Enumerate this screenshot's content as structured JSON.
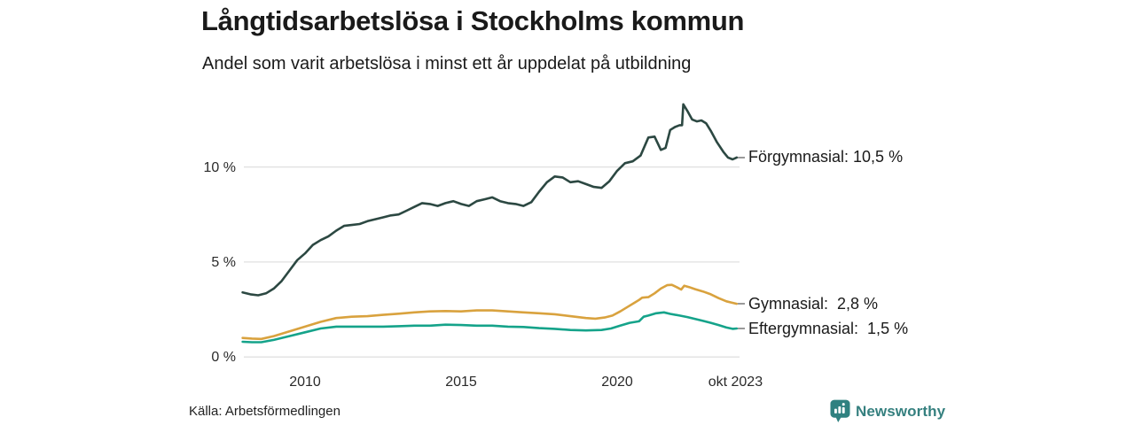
{
  "header": {
    "title": "Långtidsarbetslösa i Stockholms kommun",
    "subtitle": "Andel som varit arbetslösa i minst ett år uppdelat på utbildning"
  },
  "footer": {
    "source": "Källa: Arbetsförmedlingen",
    "brand": "Newsworthy"
  },
  "colors": {
    "grid": "#e0e0e0",
    "tick_text": "#2a2a2a",
    "label_dash": "#999999",
    "brand_teal": "#2f8180"
  },
  "chart_data": {
    "type": "line",
    "title": "Långtidsarbetslösa i Stockholms kommun",
    "subtitle": "Andel som varit arbetslösa i minst ett år uppdelat på utbildning",
    "unit": "%",
    "grid": "horizontal",
    "legend_position": "end-of-line-labels-right",
    "xlim": [
      2008.0,
      2023.83
    ],
    "ylim": [
      0,
      13.8
    ],
    "yticks": [
      {
        "value": 0,
        "label": "0 %"
      },
      {
        "value": 5,
        "label": "5 %"
      },
      {
        "value": 10,
        "label": "10 %"
      }
    ],
    "xticks": [
      {
        "value": 2010,
        "label": "2010"
      },
      {
        "value": 2015,
        "label": "2015"
      },
      {
        "value": 2020,
        "label": "2020"
      },
      {
        "value": 2023.79,
        "label": "okt 2023"
      }
    ],
    "series": [
      {
        "name": "Förgymnasial",
        "end_label": "Förgymnasial: 10,5 %",
        "end_value": 10.5,
        "color": "#2c4842",
        "points": [
          [
            2008.0,
            3.4
          ],
          [
            2008.25,
            3.3
          ],
          [
            2008.5,
            3.25
          ],
          [
            2008.75,
            3.35
          ],
          [
            2009.0,
            3.6
          ],
          [
            2009.25,
            4.0
          ],
          [
            2009.5,
            4.55
          ],
          [
            2009.75,
            5.1
          ],
          [
            2010.0,
            5.45
          ],
          [
            2010.25,
            5.9
          ],
          [
            2010.5,
            6.15
          ],
          [
            2010.75,
            6.35
          ],
          [
            2011.0,
            6.65
          ],
          [
            2011.25,
            6.9
          ],
          [
            2011.5,
            6.95
          ],
          [
            2011.75,
            7.0
          ],
          [
            2012.0,
            7.15
          ],
          [
            2012.25,
            7.25
          ],
          [
            2012.5,
            7.35
          ],
          [
            2012.75,
            7.45
          ],
          [
            2013.0,
            7.5
          ],
          [
            2013.25,
            7.7
          ],
          [
            2013.5,
            7.9
          ],
          [
            2013.75,
            8.1
          ],
          [
            2014.0,
            8.05
          ],
          [
            2014.25,
            7.95
          ],
          [
            2014.5,
            8.1
          ],
          [
            2014.75,
            8.2
          ],
          [
            2015.0,
            8.05
          ],
          [
            2015.25,
            7.95
          ],
          [
            2015.5,
            8.2
          ],
          [
            2015.75,
            8.3
          ],
          [
            2016.0,
            8.4
          ],
          [
            2016.25,
            8.2
          ],
          [
            2016.5,
            8.1
          ],
          [
            2016.75,
            8.05
          ],
          [
            2017.0,
            7.95
          ],
          [
            2017.25,
            8.15
          ],
          [
            2017.5,
            8.7
          ],
          [
            2017.75,
            9.2
          ],
          [
            2018.0,
            9.5
          ],
          [
            2018.25,
            9.45
          ],
          [
            2018.5,
            9.2
          ],
          [
            2018.75,
            9.25
          ],
          [
            2019.0,
            9.1
          ],
          [
            2019.25,
            8.95
          ],
          [
            2019.5,
            8.9
          ],
          [
            2019.75,
            9.25
          ],
          [
            2020.0,
            9.8
          ],
          [
            2020.25,
            10.2
          ],
          [
            2020.5,
            10.3
          ],
          [
            2020.75,
            10.6
          ],
          [
            2021.0,
            11.55
          ],
          [
            2021.2,
            11.6
          ],
          [
            2021.4,
            10.9
          ],
          [
            2021.55,
            11.0
          ],
          [
            2021.7,
            11.95
          ],
          [
            2021.85,
            12.1
          ],
          [
            2022.0,
            12.2
          ],
          [
            2022.08,
            12.2
          ],
          [
            2022.12,
            13.3
          ],
          [
            2022.25,
            12.95
          ],
          [
            2022.4,
            12.5
          ],
          [
            2022.55,
            12.4
          ],
          [
            2022.7,
            12.45
          ],
          [
            2022.85,
            12.3
          ],
          [
            2023.0,
            11.9
          ],
          [
            2023.2,
            11.3
          ],
          [
            2023.4,
            10.8
          ],
          [
            2023.55,
            10.5
          ],
          [
            2023.7,
            10.4
          ],
          [
            2023.83,
            10.5
          ]
        ]
      },
      {
        "name": "Gymnasial",
        "end_label": "Gymnasial:  2,8 %",
        "end_value": 2.8,
        "color": "#d9a23e",
        "points": [
          [
            2008.0,
            1.0
          ],
          [
            2008.3,
            0.97
          ],
          [
            2008.6,
            0.95
          ],
          [
            2009.0,
            1.1
          ],
          [
            2009.5,
            1.35
          ],
          [
            2010.0,
            1.6
          ],
          [
            2010.5,
            1.85
          ],
          [
            2011.0,
            2.05
          ],
          [
            2011.5,
            2.12
          ],
          [
            2012.0,
            2.15
          ],
          [
            2012.5,
            2.22
          ],
          [
            2013.0,
            2.28
          ],
          [
            2013.5,
            2.35
          ],
          [
            2014.0,
            2.4
          ],
          [
            2014.5,
            2.42
          ],
          [
            2015.0,
            2.4
          ],
          [
            2015.5,
            2.45
          ],
          [
            2016.0,
            2.45
          ],
          [
            2016.5,
            2.4
          ],
          [
            2017.0,
            2.35
          ],
          [
            2017.5,
            2.3
          ],
          [
            2018.0,
            2.25
          ],
          [
            2018.5,
            2.15
          ],
          [
            2019.0,
            2.05
          ],
          [
            2019.3,
            2.02
          ],
          [
            2019.6,
            2.08
          ],
          [
            2019.85,
            2.18
          ],
          [
            2020.1,
            2.4
          ],
          [
            2020.35,
            2.65
          ],
          [
            2020.55,
            2.85
          ],
          [
            2020.7,
            3.0
          ],
          [
            2020.8,
            3.12
          ],
          [
            2021.0,
            3.15
          ],
          [
            2021.2,
            3.35
          ],
          [
            2021.4,
            3.6
          ],
          [
            2021.6,
            3.78
          ],
          [
            2021.75,
            3.8
          ],
          [
            2021.9,
            3.68
          ],
          [
            2022.05,
            3.55
          ],
          [
            2022.15,
            3.75
          ],
          [
            2022.3,
            3.68
          ],
          [
            2022.5,
            3.57
          ],
          [
            2022.75,
            3.45
          ],
          [
            2023.0,
            3.3
          ],
          [
            2023.25,
            3.1
          ],
          [
            2023.5,
            2.93
          ],
          [
            2023.65,
            2.87
          ],
          [
            2023.83,
            2.8
          ]
        ]
      },
      {
        "name": "Eftergymnasial",
        "end_label": "Eftergymnasial:  1,5 %",
        "end_value": 1.5,
        "color": "#15a38a",
        "points": [
          [
            2008.0,
            0.8
          ],
          [
            2008.3,
            0.78
          ],
          [
            2008.6,
            0.78
          ],
          [
            2009.0,
            0.9
          ],
          [
            2009.5,
            1.1
          ],
          [
            2010.0,
            1.3
          ],
          [
            2010.5,
            1.5
          ],
          [
            2011.0,
            1.6
          ],
          [
            2011.5,
            1.6
          ],
          [
            2012.0,
            1.6
          ],
          [
            2012.5,
            1.6
          ],
          [
            2013.0,
            1.62
          ],
          [
            2013.5,
            1.65
          ],
          [
            2014.0,
            1.65
          ],
          [
            2014.5,
            1.7
          ],
          [
            2015.0,
            1.68
          ],
          [
            2015.5,
            1.65
          ],
          [
            2016.0,
            1.65
          ],
          [
            2016.5,
            1.6
          ],
          [
            2017.0,
            1.58
          ],
          [
            2017.5,
            1.52
          ],
          [
            2018.0,
            1.48
          ],
          [
            2018.5,
            1.42
          ],
          [
            2019.0,
            1.4
          ],
          [
            2019.5,
            1.42
          ],
          [
            2019.8,
            1.5
          ],
          [
            2020.1,
            1.65
          ],
          [
            2020.4,
            1.8
          ],
          [
            2020.7,
            1.88
          ],
          [
            2020.85,
            2.12
          ],
          [
            2021.0,
            2.18
          ],
          [
            2021.25,
            2.3
          ],
          [
            2021.5,
            2.35
          ],
          [
            2021.7,
            2.27
          ],
          [
            2022.0,
            2.18
          ],
          [
            2022.25,
            2.1
          ],
          [
            2022.5,
            2.0
          ],
          [
            2022.75,
            1.9
          ],
          [
            2023.0,
            1.8
          ],
          [
            2023.25,
            1.68
          ],
          [
            2023.5,
            1.55
          ],
          [
            2023.7,
            1.48
          ],
          [
            2023.83,
            1.5
          ]
        ]
      }
    ]
  }
}
